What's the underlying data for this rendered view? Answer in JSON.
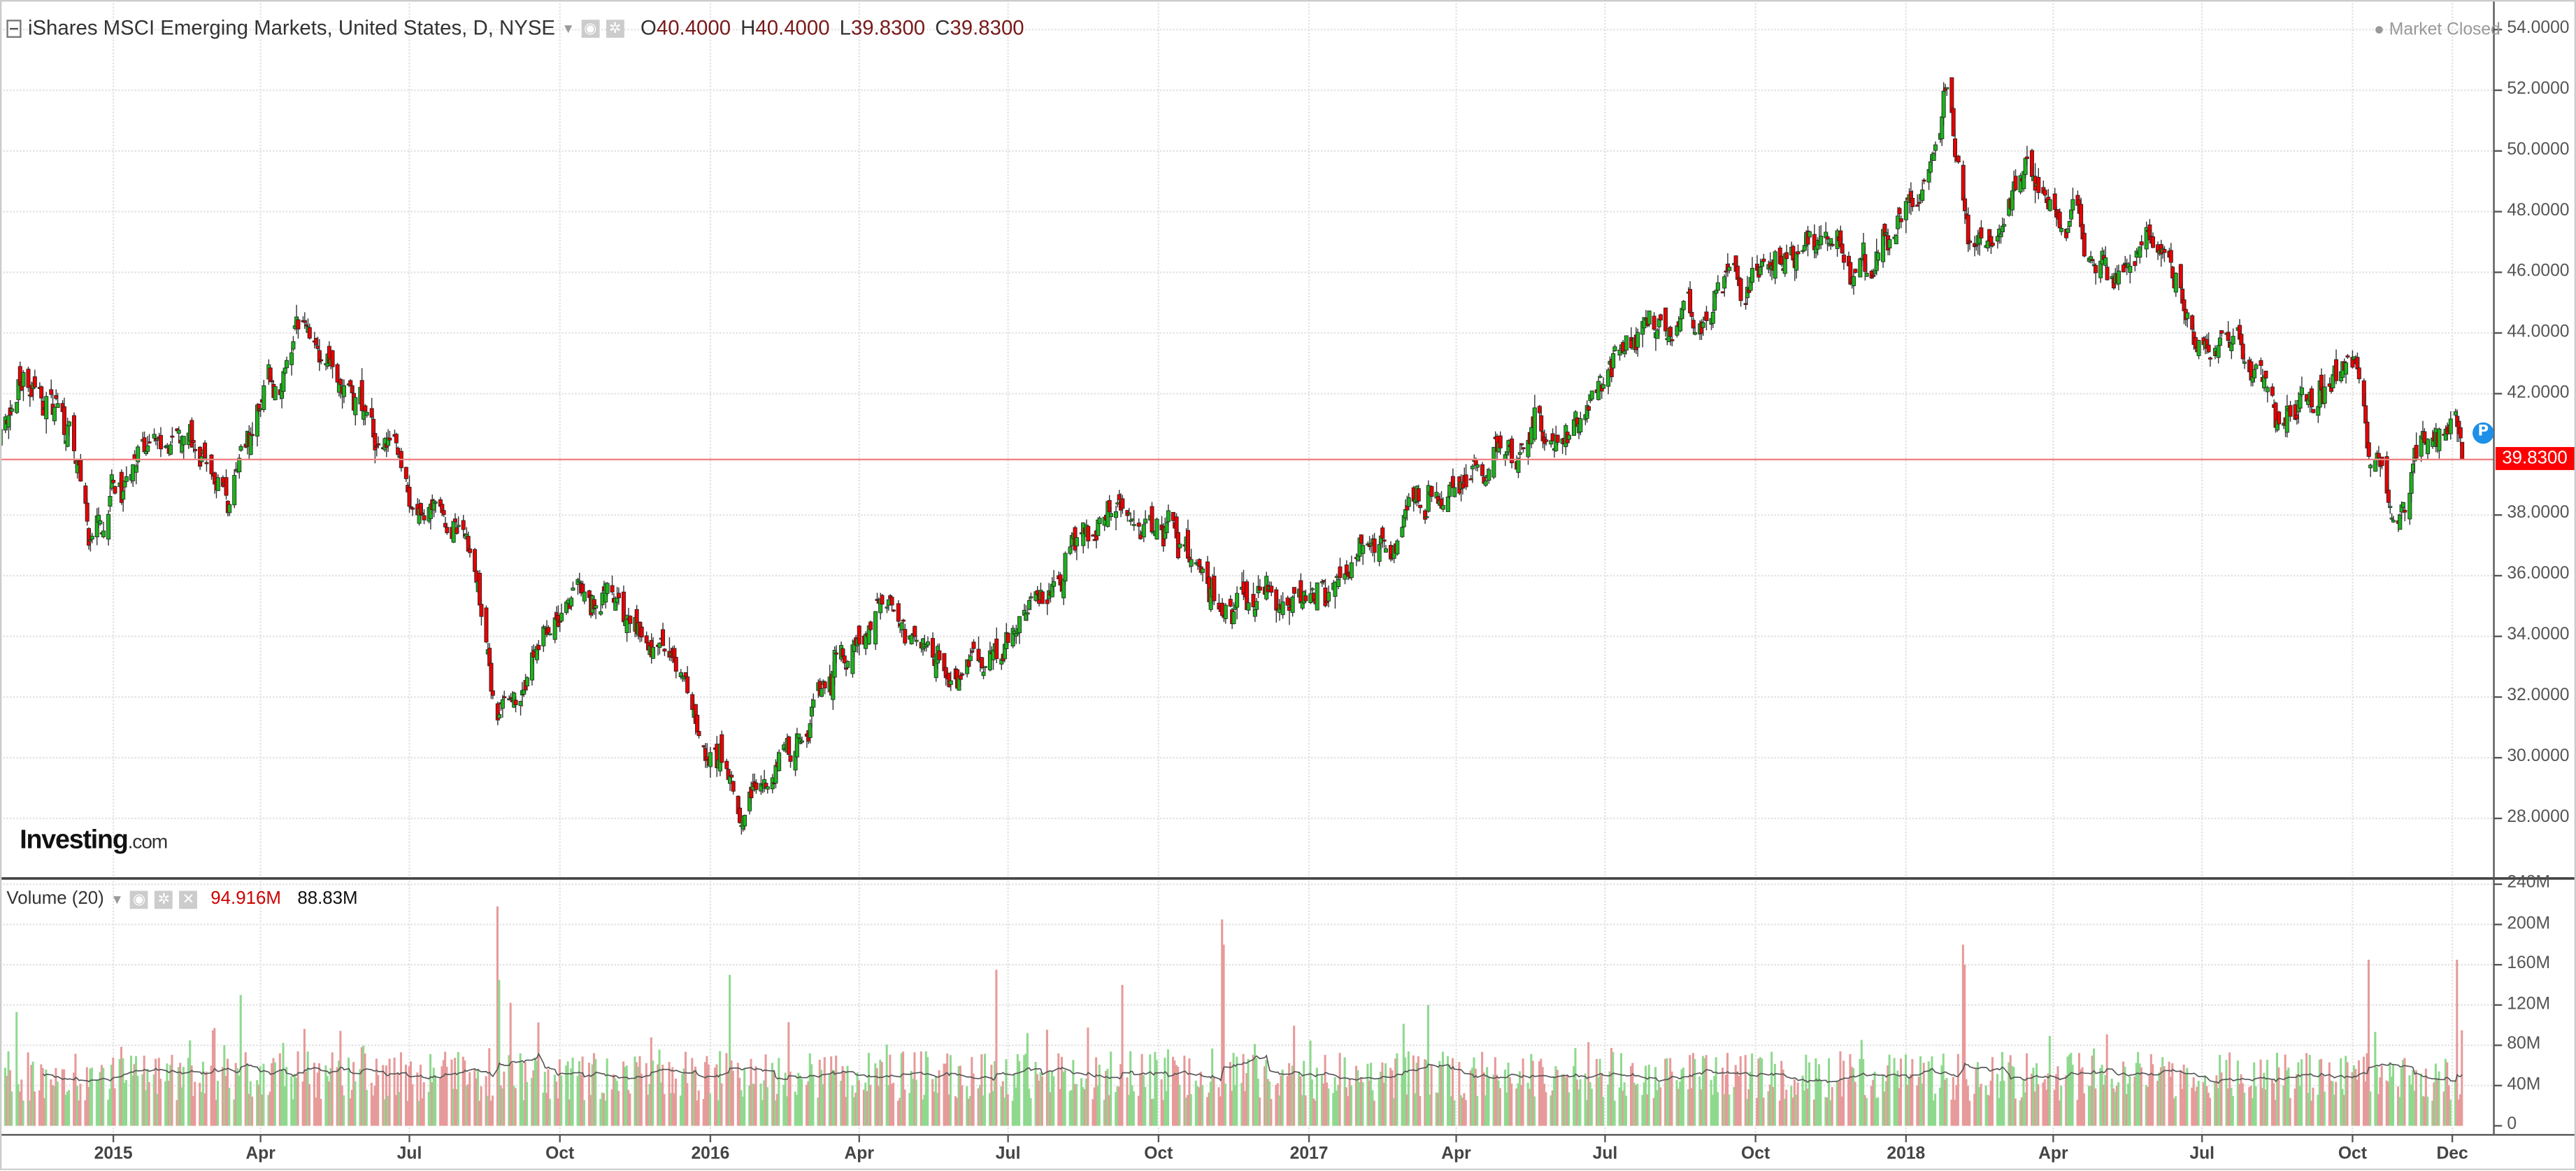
{
  "header": {
    "title": "iShares MSCI Emerging Markets, United States, D, NYSE",
    "ohlc": [
      {
        "k": "O",
        "v": "40.4000"
      },
      {
        "k": "H",
        "v": "40.4000"
      },
      {
        "k": "L",
        "v": "39.8300"
      },
      {
        "k": "C",
        "v": "39.8300"
      }
    ],
    "market_status": "Market Closed"
  },
  "volume_header": {
    "label": "Volume (20)",
    "value": "94.916M",
    "ma_value": "88.83M"
  },
  "logo": {
    "main": "Investing",
    "suffix": ".com"
  },
  "current_price": "39.8300",
  "marker": "P",
  "colors": {
    "up": "#1db31d",
    "down": "#e80000",
    "vol_up": "#8fd98f",
    "vol_down": "#e79a9a",
    "price_line": "#f08080",
    "marker": "#1e90e8"
  },
  "price_axis": [
    "54.0000",
    "52.0000",
    "50.0000",
    "48.0000",
    "46.0000",
    "44.0000",
    "42.0000",
    "38.0000",
    "36.0000",
    "34.0000",
    "32.0000",
    "30.0000",
    "28.0000"
  ],
  "volume_axis": [
    "240M",
    "200M",
    "160M",
    "120M",
    "80M",
    "40M",
    "0"
  ],
  "x_axis": [
    {
      "label": "2015",
      "date": "2015-01-01"
    },
    {
      "label": "Apr",
      "date": "2015-04-01"
    },
    {
      "label": "Jul",
      "date": "2015-07-01"
    },
    {
      "label": "Oct",
      "date": "2015-10-01"
    },
    {
      "label": "2016",
      "date": "2016-01-01"
    },
    {
      "label": "Apr",
      "date": "2016-04-01"
    },
    {
      "label": "Jul",
      "date": "2016-07-01"
    },
    {
      "label": "Oct",
      "date": "2016-10-01"
    },
    {
      "label": "2017",
      "date": "2017-01-01"
    },
    {
      "label": "Apr",
      "date": "2017-04-01"
    },
    {
      "label": "Jul",
      "date": "2017-07-01"
    },
    {
      "label": "Oct",
      "date": "2017-10-01"
    },
    {
      "label": "2018",
      "date": "2018-01-01"
    },
    {
      "label": "Apr",
      "date": "2018-04-01"
    },
    {
      "label": "Jul",
      "date": "2018-07-01"
    },
    {
      "label": "Oct",
      "date": "2018-10-01"
    },
    {
      "label": "Dec",
      "date": "2018-12-01"
    }
  ],
  "chart_data": {
    "type": "candlestick",
    "title": "iShares MSCI Emerging Markets, United States, D, NYSE",
    "ylim": [
      27,
      55
    ],
    "volume_ylim_millions": [
      0,
      240
    ],
    "close_path": [
      [
        "2014-10-23",
        40.5
      ],
      [
        "2014-11-03",
        41.8
      ],
      [
        "2014-11-20",
        41.5
      ],
      [
        "2014-12-05",
        40.5
      ],
      [
        "2014-12-16",
        37.6
      ],
      [
        "2015-01-05",
        39.0
      ],
      [
        "2015-02-10",
        40.5
      ],
      [
        "2015-03-12",
        38.4
      ],
      [
        "2015-04-10",
        42.8
      ],
      [
        "2015-04-27",
        44.0
      ],
      [
        "2015-05-20",
        42.5
      ],
      [
        "2015-06-20",
        41.0
      ],
      [
        "2015-07-08",
        38.5
      ],
      [
        "2015-07-28",
        38.2
      ],
      [
        "2015-08-12",
        36.5
      ],
      [
        "2015-08-24",
        31.0
      ],
      [
        "2015-09-15",
        33.5
      ],
      [
        "2015-10-12",
        36.0
      ],
      [
        "2015-11-05",
        35.0
      ],
      [
        "2015-12-10",
        32.8
      ],
      [
        "2016-01-07",
        30.0
      ],
      [
        "2016-01-20",
        28.3
      ],
      [
        "2016-02-12",
        29.5
      ],
      [
        "2016-03-15",
        33.0
      ],
      [
        "2016-04-20",
        35.2
      ],
      [
        "2016-05-20",
        32.4
      ],
      [
        "2016-06-24",
        33.5
      ],
      [
        "2016-07-20",
        35.8
      ],
      [
        "2016-08-20",
        37.6
      ],
      [
        "2016-09-20",
        37.3
      ],
      [
        "2016-10-12",
        37.5
      ],
      [
        "2016-11-10",
        34.5
      ],
      [
        "2016-12-12",
        35.2
      ],
      [
        "2016-12-28",
        34.4
      ],
      [
        "2017-01-25",
        36.3
      ],
      [
        "2017-02-25",
        37.8
      ],
      [
        "2017-03-20",
        39.6
      ],
      [
        "2017-04-20",
        39.0
      ],
      [
        "2017-05-20",
        41.0
      ],
      [
        "2017-06-20",
        41.4
      ],
      [
        "2017-07-15",
        43.5
      ],
      [
        "2017-08-20",
        44.6
      ],
      [
        "2017-09-20",
        45.6
      ],
      [
        "2017-10-20",
        46.3
      ],
      [
        "2017-11-20",
        46.2
      ],
      [
        "2017-12-12",
        45.8
      ],
      [
        "2018-01-10",
        49.0
      ],
      [
        "2018-01-26",
        51.6
      ],
      [
        "2018-02-08",
        46.3
      ],
      [
        "2018-02-28",
        48.5
      ],
      [
        "2018-03-15",
        49.5
      ],
      [
        "2018-04-05",
        47.5
      ],
      [
        "2018-05-10",
        46.6
      ],
      [
        "2018-06-10",
        46.8
      ],
      [
        "2018-06-28",
        43.0
      ],
      [
        "2018-07-25",
        44.2
      ],
      [
        "2018-08-15",
        41.5
      ],
      [
        "2018-09-10",
        42.3
      ],
      [
        "2018-10-03",
        43.0
      ],
      [
        "2018-10-11",
        39.7
      ],
      [
        "2018-10-29",
        38.0
      ],
      [
        "2018-11-12",
        40.3
      ],
      [
        "2018-11-28",
        40.7
      ],
      [
        "2018-12-03",
        41.6
      ],
      [
        "2018-12-07",
        39.83
      ]
    ],
    "volume_baseline_millions": 55,
    "volume_spikes": [
      [
        "2015-08-24",
        218
      ],
      [
        "2015-08-25",
        145
      ],
      [
        "2016-11-09",
        205
      ],
      [
        "2016-11-10",
        180
      ],
      [
        "2018-02-05",
        180
      ],
      [
        "2018-02-06",
        160
      ],
      [
        "2016-01-13",
        150
      ],
      [
        "2016-06-24",
        155
      ],
      [
        "2017-03-15",
        120
      ],
      [
        "2018-10-11",
        165
      ],
      [
        "2018-12-04",
        165
      ],
      [
        "2015-03-20",
        130
      ],
      [
        "2016-09-09",
        140
      ]
    ],
    "last_candle": {
      "open": 40.4,
      "high": 40.4,
      "low": 39.83,
      "close": 39.83
    },
    "last_volume_millions": 94.916,
    "last_volume_ma_millions": 88.83
  }
}
